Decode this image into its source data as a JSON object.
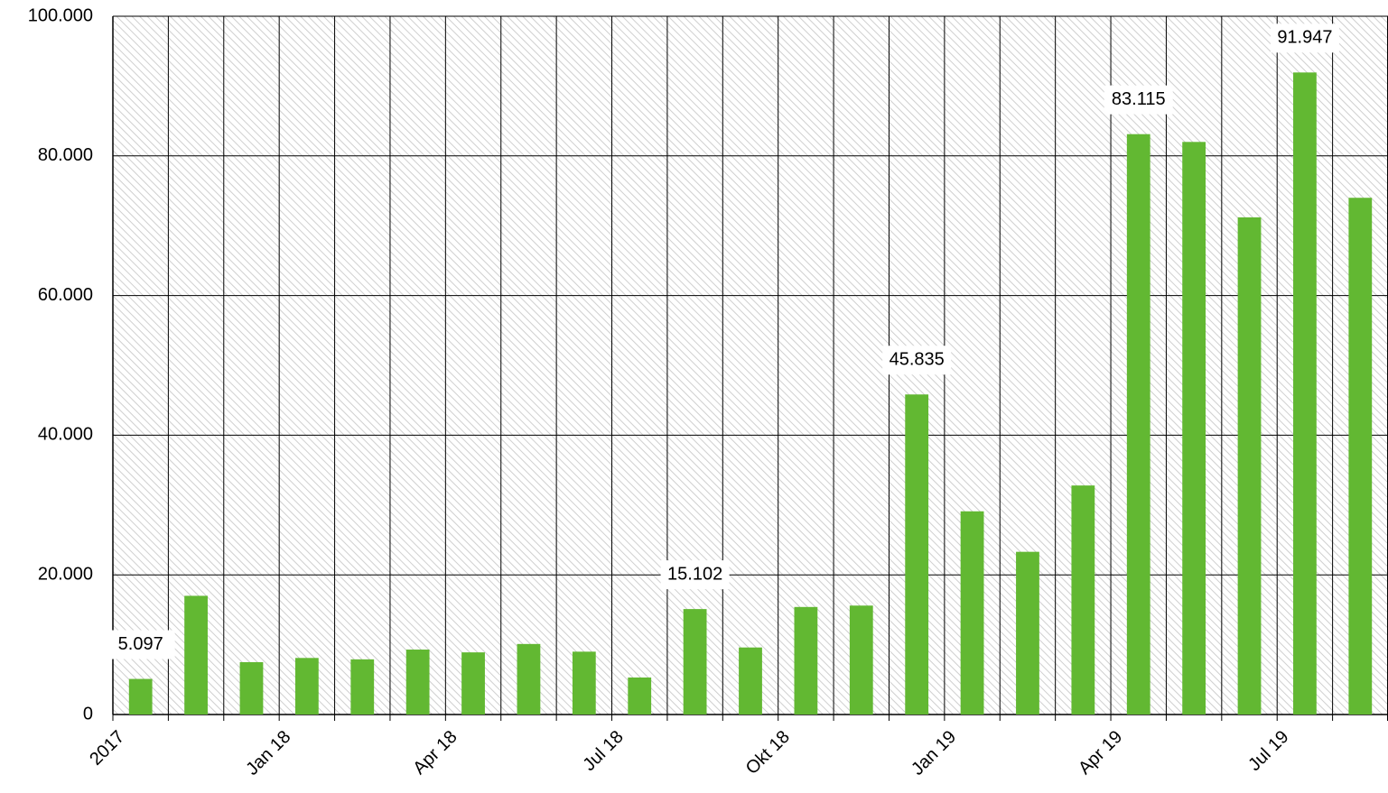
{
  "chart_data": {
    "type": "bar",
    "categories": [
      "2017",
      null,
      null,
      "Jan 18",
      null,
      null,
      "Apr 18",
      null,
      null,
      "Jul 18",
      null,
      null,
      "Okt 18",
      null,
      null,
      "Jan 19",
      null,
      null,
      "Apr 19",
      null,
      null,
      "Jul 19",
      null
    ],
    "values": [
      5097,
      17000,
      7500,
      8100,
      7900,
      9300,
      8900,
      10100,
      9000,
      5300,
      15102,
      9600,
      15400,
      15600,
      45835,
      29100,
      23300,
      32800,
      83115,
      82000,
      71200,
      91947,
      74000
    ],
    "value_labels": [
      "5.097",
      null,
      null,
      null,
      null,
      null,
      null,
      null,
      null,
      null,
      "15.102",
      null,
      null,
      null,
      "45.835",
      null,
      null,
      null,
      "83.115",
      null,
      null,
      "91.947",
      null
    ],
    "color": "#62b832",
    "ylim": [
      0,
      100000
    ],
    "yticks": [
      0,
      {
        "value": 20000,
        "label": "20.000"
      },
      {
        "value": 40000,
        "label": "40.000"
      },
      {
        "value": 60000,
        "label": "60.000"
      },
      {
        "value": 80000,
        "label": "80.000"
      },
      {
        "value": 100000,
        "label": "100.000"
      }
    ],
    "grid": true
  }
}
